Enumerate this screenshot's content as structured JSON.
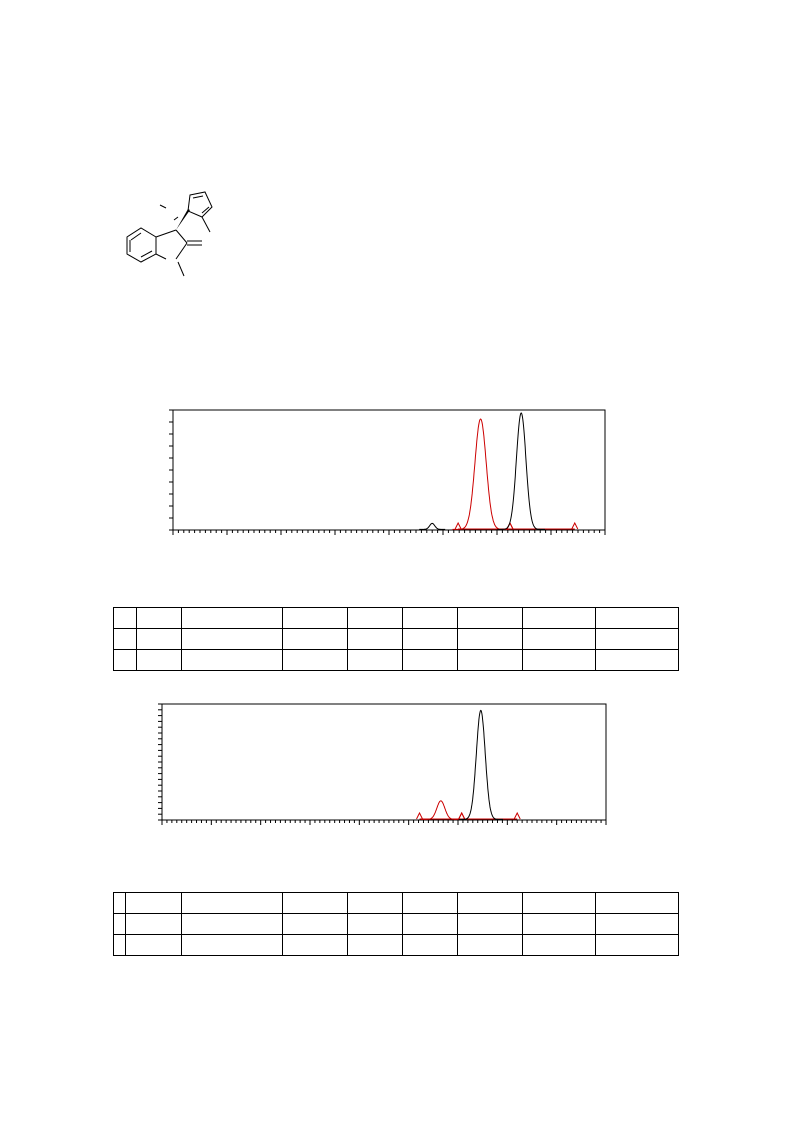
{
  "structure": {
    "icon": "molecule-structure-icon"
  },
  "chromatograms": [
    {
      "chart_data": {
        "type": "line",
        "title": "",
        "xlabel": "",
        "ylabel": "",
        "series": [
          {
            "peaks": [
              {
                "x": 0.6,
                "height": 0.05,
                "width": 0.006,
                "color": "#000000"
              },
              {
                "x": 0.712,
                "height": 0.92,
                "width": 0.013,
                "color": "#cc0000"
              },
              {
                "x": 0.806,
                "height": 0.97,
                "width": 0.011,
                "color": "#000000"
              }
            ]
          }
        ],
        "baselines": [
          {
            "from": 0.66,
            "to": 0.78,
            "color": "#cc0000"
          },
          {
            "from": 0.78,
            "to": 0.93,
            "color": "#cc0000"
          }
        ],
        "x_minor_ticks": 80,
        "y_ticks": 10
      }
    },
    {
      "chart_data": {
        "type": "line",
        "title": "",
        "xlabel": "",
        "ylabel": "",
        "series": [
          {
            "peaks": [
              {
                "x": 0.628,
                "height": 0.16,
                "width": 0.009,
                "color": "#cc0000"
              },
              {
                "x": 0.718,
                "height": 0.94,
                "width": 0.01,
                "color": "#000000"
              }
            ]
          }
        ],
        "baselines": [
          {
            "from": 0.58,
            "to": 0.675,
            "color": "#cc0000"
          },
          {
            "from": 0.675,
            "to": 0.8,
            "color": "#cc0000"
          }
        ],
        "x_minor_ticks": 90,
        "y_ticks": 20
      }
    }
  ],
  "tables": [
    {
      "rows": [
        [
          "",
          "",
          "",
          "",
          "",
          "",
          "",
          "",
          ""
        ],
        [
          "",
          "",
          "",
          "",
          "",
          "",
          "",
          "",
          ""
        ],
        [
          "",
          "",
          "",
          "",
          "",
          "",
          "",
          "",
          ""
        ]
      ]
    },
    {
      "rows": [
        [
          "",
          "",
          "",
          "",
          "",
          "",
          "",
          "",
          ""
        ],
        [
          "",
          "",
          "",
          "",
          "",
          "",
          "",
          "",
          ""
        ],
        [
          "",
          "",
          "",
          "",
          "",
          "",
          "",
          "",
          ""
        ]
      ]
    }
  ]
}
